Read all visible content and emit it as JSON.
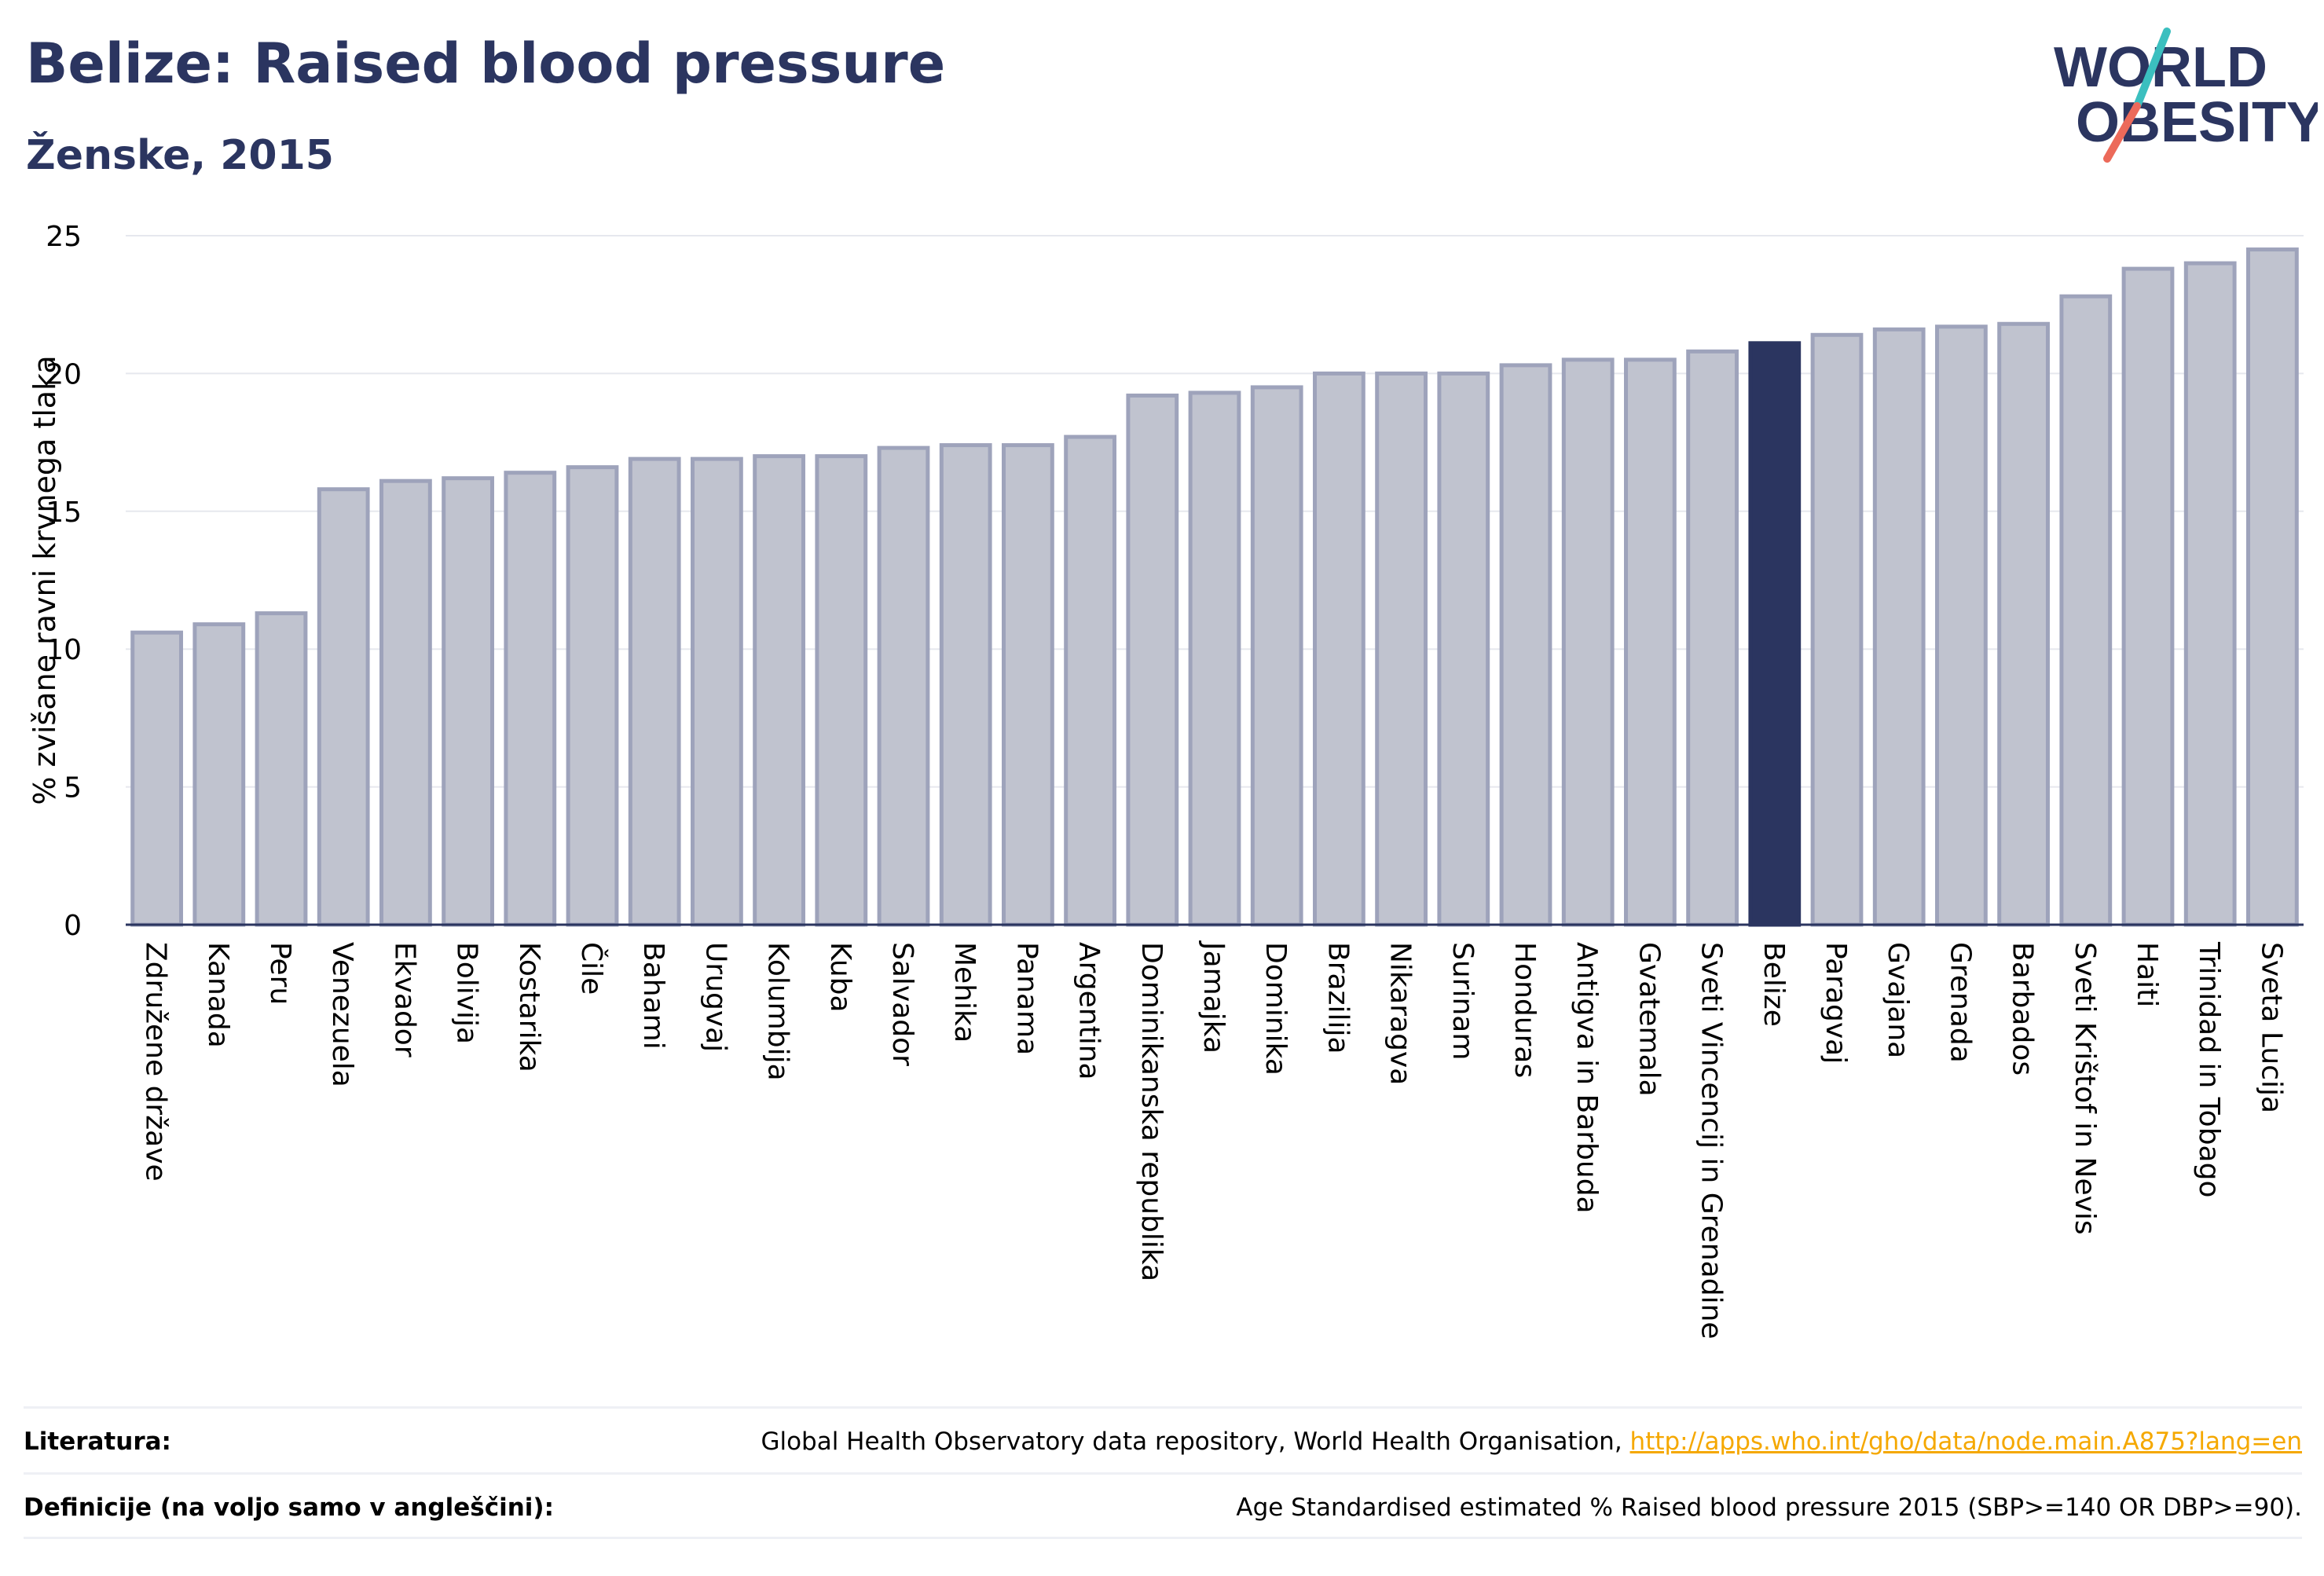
{
  "header": {
    "title": "Belize: Raised blood pressure",
    "subtitle": "Ženske, 2015",
    "logo": {
      "line1": "WORLD",
      "line2": "OBESITY"
    }
  },
  "colors": {
    "title": "#2b3560",
    "bar_fill": "#c0c3cf",
    "bar_stroke": "#9ea3bb",
    "highlight": "#2b3560",
    "logo_teal": "#3bbfbf",
    "logo_coral": "#ec6a5a",
    "link": "#f5a800"
  },
  "chart_data": {
    "type": "bar",
    "ylabel": "% zvišane ravni krvnega tlaka",
    "ylim": [
      0,
      25
    ],
    "yticks": [
      0,
      5,
      10,
      15,
      20,
      25
    ],
    "grid": true,
    "highlight": "Belize",
    "categories": [
      "Združene države",
      "Kanada",
      "Peru",
      "Venezuela",
      "Ekvador",
      "Bolivija",
      "Kostarika",
      "Čile",
      "Bahami",
      "Urugvaj",
      "Kolumbija",
      "Kuba",
      "Salvador",
      "Mehika",
      "Panama",
      "Argentina",
      "Dominikanska republika",
      "Jamajka",
      "Dominika",
      "Brazilija",
      "Nikaragva",
      "Surinam",
      "Honduras",
      "Antigva in Barbuda",
      "Gvatemala",
      "Sveti Vincencij in Grenadine",
      "Belize",
      "Paragvaj",
      "Gvajana",
      "Grenada",
      "Barbados",
      "Sveti Krištof in Nevis",
      "Haiti",
      "Trinidad in Tobago",
      "Sveta Lucija"
    ],
    "values": [
      10.6,
      10.9,
      11.3,
      15.8,
      16.1,
      16.2,
      16.4,
      16.6,
      16.9,
      16.9,
      17.0,
      17.0,
      17.3,
      17.4,
      17.4,
      17.7,
      19.2,
      19.3,
      19.5,
      20.0,
      20.0,
      20.0,
      20.3,
      20.5,
      20.5,
      20.8,
      21.1,
      21.4,
      21.6,
      21.7,
      21.8,
      22.8,
      23.8,
      24.0,
      24.5
    ]
  },
  "footer": {
    "sources_label": "Literatura:",
    "sources_text": "Global Health Observatory data repository, World Health Organisation, ",
    "sources_link": "http://apps.who.int/gho/data/node.main.A875?lang=en",
    "definitions_label": "Definicije (na voljo samo v angleščini):",
    "definitions_text": "Age Standardised estimated % Raised blood pressure 2015 (SBP>=140 OR DBP>=90)."
  }
}
